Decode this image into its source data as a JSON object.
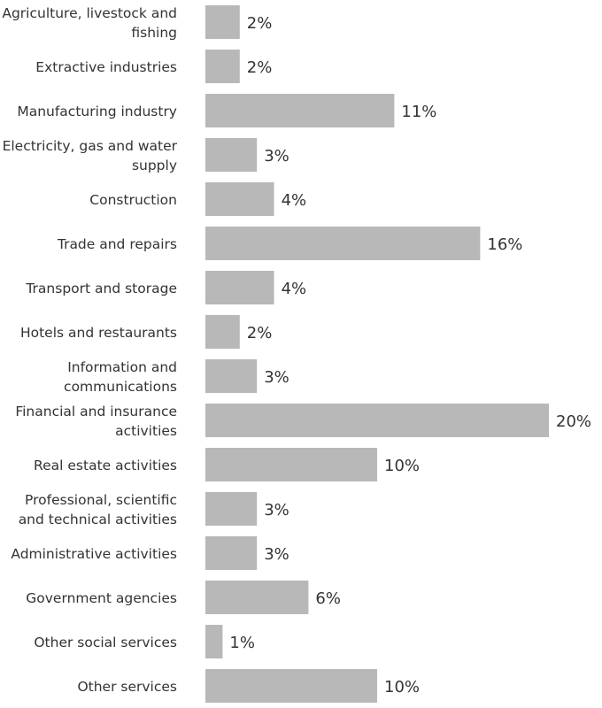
{
  "colors": {
    "bar": "#b8b8b8",
    "text": "#333333",
    "background": "#ffffff"
  },
  "chart_data": {
    "type": "bar",
    "orientation": "horizontal",
    "title": "",
    "xlabel": "",
    "ylabel": "",
    "unit": "%",
    "grid": false,
    "xlim": [
      0,
      20
    ],
    "categories": [
      [
        "Agriculture, livestock and",
        "fishing"
      ],
      [
        "Extractive industries"
      ],
      [
        "Manufacturing industry"
      ],
      [
        "Electricity, gas and water",
        "supply"
      ],
      [
        "Construction"
      ],
      [
        "Trade and repairs"
      ],
      [
        "Transport and storage"
      ],
      [
        "Hotels and restaurants"
      ],
      [
        "Information and",
        "communications"
      ],
      [
        "Financial and insurance",
        "activities"
      ],
      [
        "Real estate activities"
      ],
      [
        "Professional, scientific",
        "and technical activities"
      ],
      [
        "Administrative activities"
      ],
      [
        "Government agencies"
      ],
      [
        "Other social services"
      ],
      [
        "Other services"
      ]
    ],
    "values": [
      2,
      2,
      11,
      3,
      4,
      16,
      4,
      2,
      3,
      20,
      10,
      3,
      3,
      6,
      1,
      10
    ],
    "value_labels": [
      "2%",
      "2%",
      "11%",
      "3%",
      "4%",
      "16%",
      "4%",
      "2%",
      "3%",
      "20%",
      "10%",
      "3%",
      "3%",
      "6%",
      "1%",
      "10%"
    ]
  }
}
